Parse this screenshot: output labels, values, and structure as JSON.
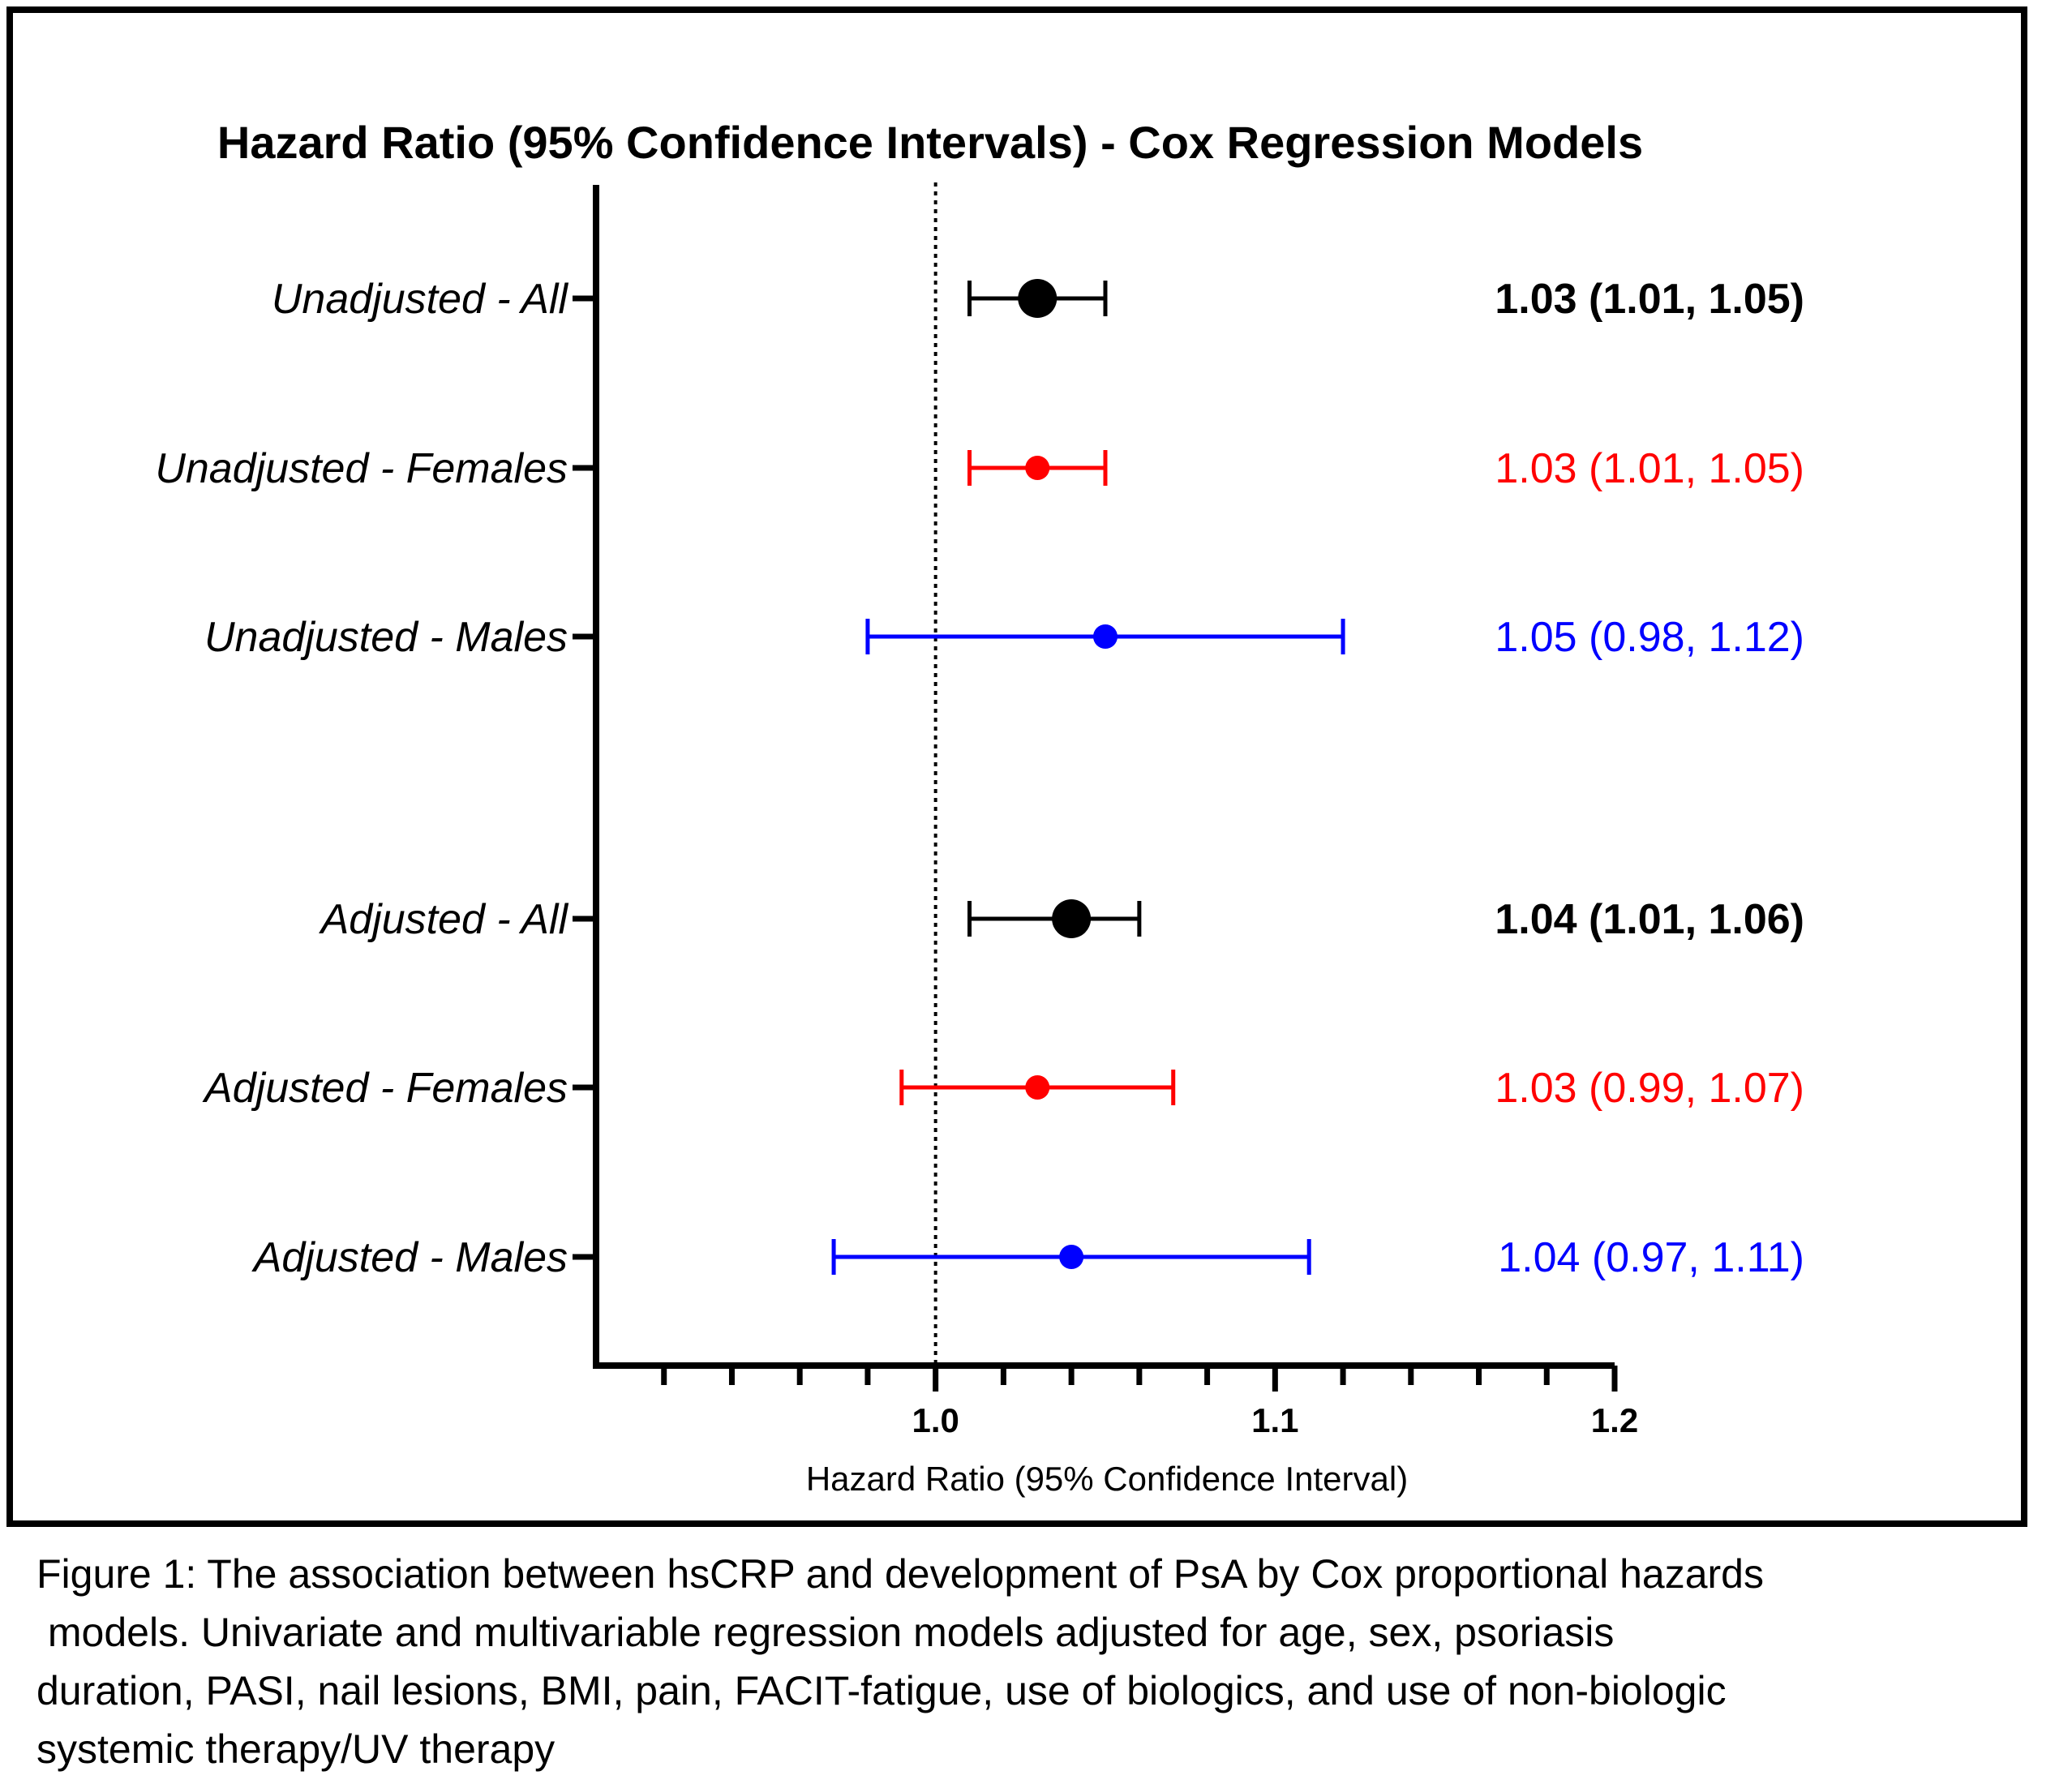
{
  "chart_data": {
    "type": "forest",
    "title": "Hazard Ratio (95% Confidence Intervals) - Cox Regression Models",
    "xlabel": "Hazard Ratio (95% Confidence Interval)",
    "xlim": [
      0.9,
      1.2
    ],
    "xticks": [
      {
        "value": 1.0,
        "label": "1.0"
      },
      {
        "value": 1.1,
        "label": "1.1"
      },
      {
        "value": 1.2,
        "label": "1.2"
      }
    ],
    "reference_line": 1.0,
    "rows": [
      {
        "label": "Unadjusted - All",
        "hr": 1.03,
        "lower": 1.01,
        "upper": 1.05,
        "text": "1.03 (1.01, 1.05)",
        "color": "#000000",
        "bold": true
      },
      {
        "label": "Unadjusted - Females",
        "hr": 1.03,
        "lower": 1.01,
        "upper": 1.05,
        "text": "1.03 (1.01, 1.05)",
        "color": "#ff0000",
        "bold": false
      },
      {
        "label": "Unadjusted - Males",
        "hr": 1.05,
        "lower": 0.98,
        "upper": 1.12,
        "text": "1.05 (0.98, 1.12)",
        "color": "#0000ff",
        "bold": false
      },
      {
        "label": "Adjusted - All",
        "hr": 1.04,
        "lower": 1.01,
        "upper": 1.06,
        "text": "1.04 (1.01, 1.06)",
        "color": "#000000",
        "bold": true
      },
      {
        "label": "Adjusted - Females",
        "hr": 1.03,
        "lower": 0.99,
        "upper": 1.07,
        "text": "1.03 (0.99, 1.07)",
        "color": "#ff0000",
        "bold": false
      },
      {
        "label": "Adjusted - Males",
        "hr": 1.04,
        "lower": 0.97,
        "upper": 1.11,
        "text": "1.04 (0.97, 1.11)",
        "color": "#0000ff",
        "bold": false
      }
    ]
  },
  "caption": "Figure 1: The association between hsCRP and development of PsA by Cox proportional hazards\n models. Univariate and multivariable regression models adjusted for age, sex, psoriasis\nduration, PASI, nail lesions, BMI, pain, FACIT-fatigue, use of biologics, and use of non-biologic\nsystemic therapy/UV therapy"
}
